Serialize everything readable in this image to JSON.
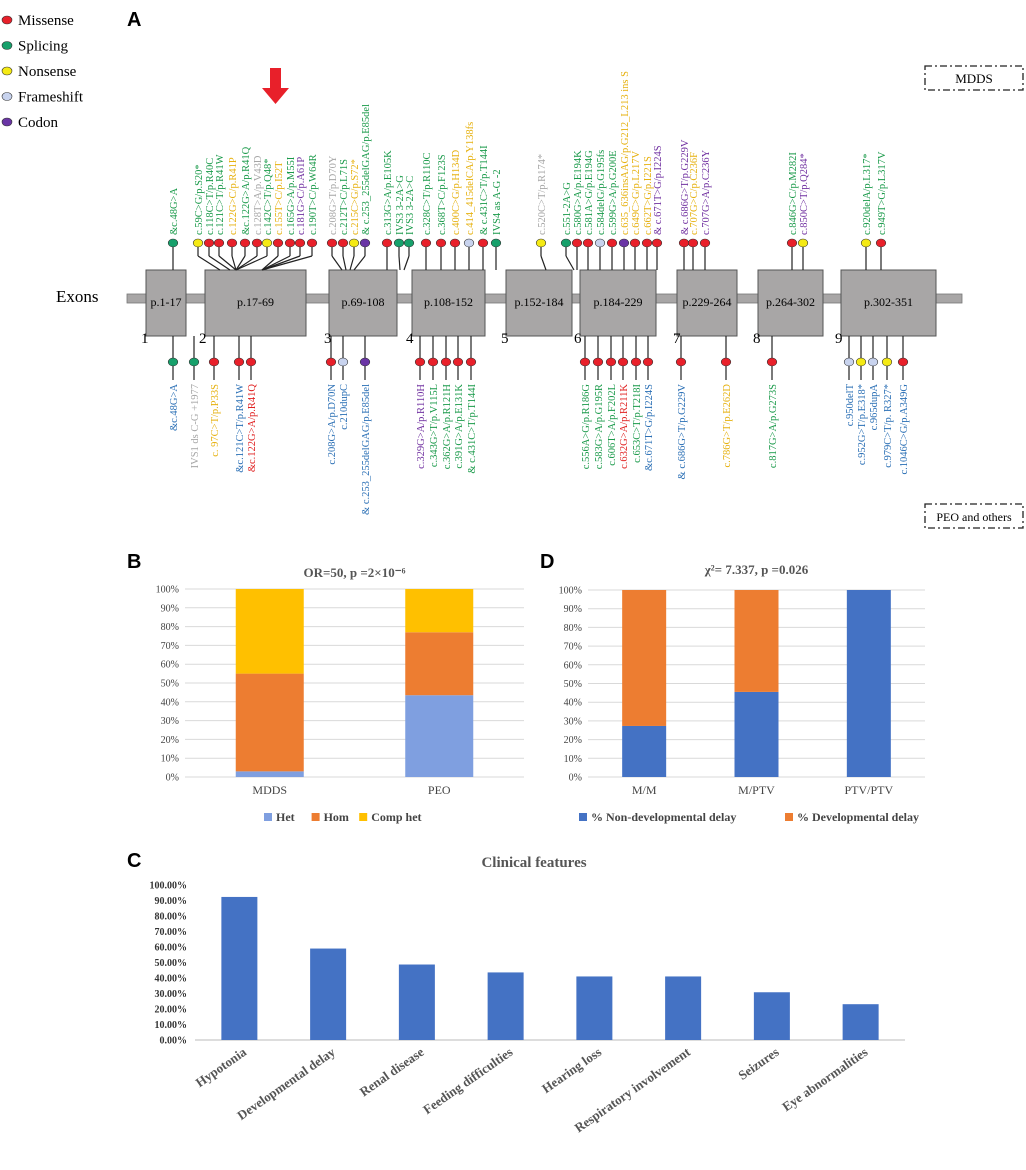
{
  "colors": {
    "missense": "#e8202a",
    "splicing": "#17a06b",
    "nonsense": "#f5ea14",
    "frameshift": "#c8d3ee",
    "codon": "#6a35a5",
    "green_text": "#1a9a4a",
    "blue_text": "#2a6fb5",
    "yellow_text": "#e6b10f",
    "gray_text": "#a6a6a6",
    "purple_text": "#7030a0",
    "red_text": "#e02020",
    "exon_fill": "#a8a6a6",
    "het": "#7f9fe0",
    "hom": "#ed7d31",
    "comp_het": "#ffc000",
    "nondev": "#4472c4",
    "dev": "#ed7d31",
    "clinical": "#4472c4"
  },
  "legend": [
    {
      "label": "Missense",
      "color": "missense"
    },
    {
      "label": "Splicing",
      "color": "splicing"
    },
    {
      "label": "Nonsense",
      "color": "nonsense"
    },
    {
      "label": "Frameshift",
      "color": "frameshift"
    },
    {
      "label": "Codon",
      "color": "codon"
    }
  ],
  "panel_a": {
    "letter": "A",
    "exons_label": "Exons",
    "mdds_box": "MDDS",
    "peo_box": "PEO and others",
    "exons": [
      {
        "num": "1",
        "label": "p.1-17"
      },
      {
        "num": "2",
        "label": "p.17-69"
      },
      {
        "num": "3",
        "label": "p.69-108"
      },
      {
        "num": "4",
        "label": "p.108-152"
      },
      {
        "num": "5",
        "label": "p.152-184"
      },
      {
        "num": "6",
        "label": "p.184-229"
      },
      {
        "num": "7",
        "label": "p.229-264"
      },
      {
        "num": "8",
        "label": "p.264-302"
      },
      {
        "num": "9",
        "label": "p.302-351"
      }
    ],
    "top_variants": [
      {
        "text": "&c.48G>A",
        "type": "splicing",
        "tc": "green_text"
      },
      {
        "text": "c.59C>G/p.S20*",
        "type": "nonsense",
        "tc": "green_text"
      },
      {
        "text": "c.118C>T/p.R40C",
        "type": "missense",
        "tc": "green_text"
      },
      {
        "text": "c.121C>T/p.R41W",
        "type": "missense",
        "tc": "green_text"
      },
      {
        "text": "c.122G>C/p.R41P",
        "type": "missense",
        "tc": "yellow_text"
      },
      {
        "text": "&c.122G>A/p.R41Q",
        "type": "missense",
        "tc": "green_text"
      },
      {
        "text": "c.128T>A/p.V43D",
        "type": "missense",
        "tc": "gray_text"
      },
      {
        "text": "c.142C>T/p.Q48*",
        "type": "nonsense",
        "tc": "green_text"
      },
      {
        "text": "c.155T>C/p.I52T",
        "type": "missense",
        "tc": "yellow_text"
      },
      {
        "text": "c.165G>A/p.M55I",
        "type": "missense",
        "tc": "green_text"
      },
      {
        "text": "c.181G>C/p.A61P",
        "type": "missense",
        "tc": "purple_text"
      },
      {
        "text": "c.190T>C/p.W64R",
        "type": "missense",
        "tc": "green_text"
      },
      {
        "text": "c.208G>T/p.D70Y",
        "type": "missense",
        "tc": "gray_text"
      },
      {
        "text": "c.212T>C/p.L71S",
        "type": "missense",
        "tc": "green_text"
      },
      {
        "text": "c.215C>G/p.S72*",
        "type": "nonsense",
        "tc": "yellow_text"
      },
      {
        "text": "& c.253_255delGAG/p.E85del",
        "type": "codon",
        "tc": "green_text"
      },
      {
        "text": "c.313G>A/p.E105K",
        "type": "missense",
        "tc": "green_text"
      },
      {
        "text": "IVS3 3-2A>G",
        "type": "splicing",
        "tc": "green_text"
      },
      {
        "text": "IVS3 3-2A>C",
        "type": "splicing",
        "tc": "green_text"
      },
      {
        "text": "c.328C>T/p.R110C",
        "type": "missense",
        "tc": "green_text"
      },
      {
        "text": "c.368T>C/p.F123S",
        "type": "missense",
        "tc": "green_text"
      },
      {
        "text": "c.400C>G/p.H134D",
        "type": "missense",
        "tc": "yellow_text"
      },
      {
        "text": "c.414_415delCA/p.Y138fs",
        "type": "frameshift",
        "tc": "yellow_text"
      },
      {
        "text": "& c.431C>T/p.T144I",
        "type": "missense",
        "tc": "green_text"
      },
      {
        "text": "IVS4 as A-G -2",
        "type": "splicing",
        "tc": "green_text"
      },
      {
        "text": "c.520C>T/p.R174*",
        "type": "nonsense",
        "tc": "gray_text"
      },
      {
        "text": "c.551-2A>G",
        "type": "splicing",
        "tc": "green_text"
      },
      {
        "text": "c.580G>A/p.E194K",
        "type": "missense",
        "tc": "green_text"
      },
      {
        "text": "c.581A>G/p.E194G",
        "type": "missense",
        "tc": "green_text"
      },
      {
        "text": "c.584delG/p.G195fs",
        "type": "frameshift",
        "tc": "green_text"
      },
      {
        "text": "c.599G>A/p.G200E",
        "type": "missense",
        "tc": "green_text"
      },
      {
        "text": "c.635_636insAAG/p.G212_L213 ins S",
        "type": "codon",
        "tc": "yellow_text"
      },
      {
        "text": "c.649C>G/p.L217V",
        "type": "missense",
        "tc": "yellow_text"
      },
      {
        "text": "c.662T>G/p.I221S",
        "type": "missense",
        "tc": "yellow_text"
      },
      {
        "text": "& c.671T>G/p.I224S",
        "type": "missense",
        "tc": "purple_text"
      },
      {
        "text": "& c.686G>T/p.G229V",
        "type": "missense",
        "tc": "purple_text"
      },
      {
        "text": "c.707G>C/p.C236F",
        "type": "missense",
        "tc": "yellow_text"
      },
      {
        "text": "c.707G>A/p.C236Y",
        "type": "missense",
        "tc": "purple_text"
      },
      {
        "text": "c.846G>C/p.M282I",
        "type": "missense",
        "tc": "green_text"
      },
      {
        "text": "c.850C>T/p.Q284*",
        "type": "nonsense",
        "tc": "purple_text"
      },
      {
        "text": "c.920delA/p.L317*",
        "type": "nonsense",
        "tc": "green_text"
      },
      {
        "text": "c.949T>G/p.L317V",
        "type": "missense",
        "tc": "green_text"
      }
    ],
    "bottom_variants": [
      {
        "text": "&c.48G>A",
        "type": "splicing",
        "tc": "blue_text"
      },
      {
        "text": "IVS1 ds C-G +1977",
        "type": "splicing",
        "tc": "gray_text"
      },
      {
        "text": "c. 97C>T/p.P33S",
        "type": "missense",
        "tc": "yellow_text"
      },
      {
        "text": "&c.121C>T/p.R41W",
        "type": "missense",
        "tc": "blue_text"
      },
      {
        "text": "&c.122G>A/p.R41Q",
        "type": "missense",
        "tc": "red_text"
      },
      {
        "text": "c.208G>A/p.D70N",
        "type": "missense",
        "tc": "blue_text"
      },
      {
        "text": "c.210dupC",
        "type": "frameshift",
        "tc": "blue_text"
      },
      {
        "text": "& c.253_255delGAG/p.E85del",
        "type": "codon",
        "tc": "blue_text"
      },
      {
        "text": "c.329G>A/p.R110H",
        "type": "missense",
        "tc": "purple_text"
      },
      {
        "text": "c.343G>T/p.V115L",
        "type": "missense",
        "tc": "green_text"
      },
      {
        "text": "c.362G>A/p.R121H",
        "type": "missense",
        "tc": "green_text"
      },
      {
        "text": "c.391G>A/p.E131K",
        "type": "missense",
        "tc": "green_text"
      },
      {
        "text": "& c.431C>T/p.T144I",
        "type": "missense",
        "tc": "green_text"
      },
      {
        "text": "c.556A>G/p.R186G",
        "type": "missense",
        "tc": "green_text"
      },
      {
        "text": "c.583G>A/p.G195R",
        "type": "missense",
        "tc": "green_text"
      },
      {
        "text": "c.606T>A/p.F202L",
        "type": "missense",
        "tc": "green_text"
      },
      {
        "text": "c.632G>A/p.R211K",
        "type": "missense",
        "tc": "red_text"
      },
      {
        "text": "c.653C>T/p.T218I",
        "type": "missense",
        "tc": "green_text"
      },
      {
        "text": "&c.671T>G/p.I224S",
        "type": "missense",
        "tc": "blue_text"
      },
      {
        "text": "& c.686G>T/p.G229V",
        "type": "missense",
        "tc": "blue_text"
      },
      {
        "text": "c.786G>T/p.E262D",
        "type": "missense",
        "tc": "yellow_text"
      },
      {
        "text": "c.817G>A/p.G273S",
        "type": "missense",
        "tc": "green_text"
      },
      {
        "text": "c.950delT",
        "type": "frameshift",
        "tc": "blue_text"
      },
      {
        "text": "c.952G>T/p.E318*",
        "type": "nonsense",
        "tc": "blue_text"
      },
      {
        "text": "c.965dupA",
        "type": "frameshift",
        "tc": "blue_text"
      },
      {
        "text": "c.979C>T/p. R327*",
        "type": "nonsense",
        "tc": "blue_text"
      },
      {
        "text": "c.1046C>G/p.A349G",
        "type": "missense",
        "tc": "blue_text"
      }
    ]
  },
  "chart_data": [
    {
      "panel": "B",
      "type": "bar",
      "stacked": true,
      "title": "OR=50, p =2×10⁻⁶",
      "categories": [
        "MDDS",
        "PEO"
      ],
      "ylim": [
        0,
        100
      ],
      "yticks": [
        "0%",
        "10%",
        "20%",
        "30%",
        "40%",
        "50%",
        "60%",
        "70%",
        "80%",
        "90%",
        "100%"
      ],
      "series": [
        {
          "name": "Het",
          "color": "het",
          "values": [
            3,
            43.5
          ]
        },
        {
          "name": "Hom",
          "color": "hom",
          "values": [
            52,
            33.5
          ]
        },
        {
          "name": "Comp het",
          "color": "comp_het",
          "values": [
            45,
            23
          ]
        }
      ]
    },
    {
      "panel": "D",
      "type": "bar",
      "stacked": true,
      "title": "χ²= 7.337, p =0.026",
      "categories": [
        "M/M",
        "M/PTV",
        "PTV/PTV"
      ],
      "ylim": [
        0,
        100
      ],
      "yticks": [
        "0%",
        "10%",
        "20%",
        "30%",
        "40%",
        "50%",
        "60%",
        "70%",
        "80%",
        "90%",
        "100%"
      ],
      "series": [
        {
          "name": "% Non-developmental delay",
          "color": "nondev",
          "values": [
            27.3,
            45.5,
            100
          ]
        },
        {
          "name": "% Developmental delay",
          "color": "dev",
          "values": [
            72.7,
            54.5,
            0
          ]
        }
      ]
    },
    {
      "panel": "C",
      "type": "bar",
      "title": "Clinical features",
      "categories": [
        "Hypotonia",
        "Developmental delay",
        "Renal disease",
        "Feeding difficulties",
        "Hearing loss",
        "Respiratory involvement",
        "Seizures",
        "Eye abnormalities"
      ],
      "values": [
        92.3,
        59,
        48.7,
        43.6,
        41,
        41,
        30.8,
        23.1
      ],
      "ylim": [
        0,
        100
      ],
      "yticks": [
        "0.00%",
        "10.00%",
        "20.00%",
        "30.00%",
        "40.00%",
        "50.00%",
        "60.00%",
        "70.00%",
        "80.00%",
        "90.00%",
        "100.00%"
      ]
    }
  ]
}
